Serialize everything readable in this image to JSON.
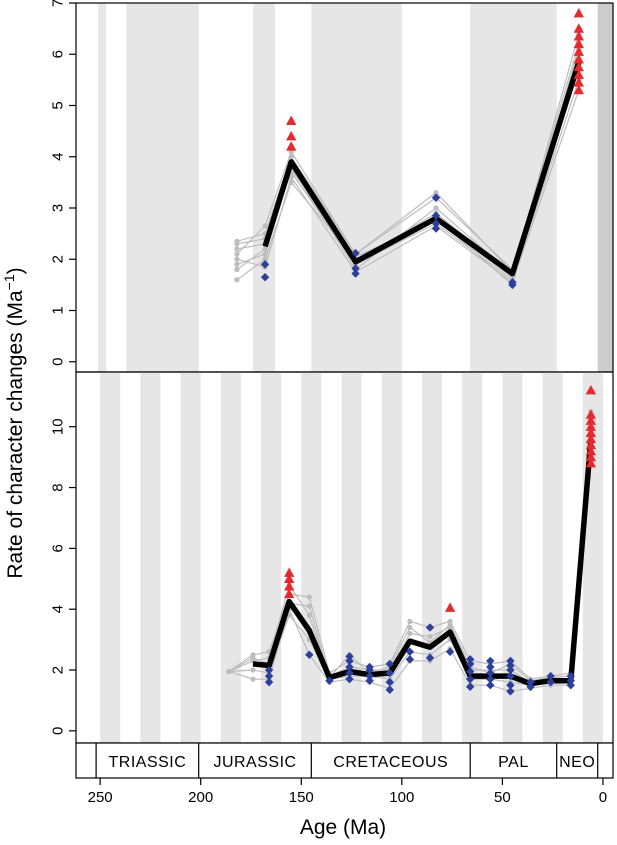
{
  "chart_data": {
    "type": "line",
    "xlabel": "Age (Ma)",
    "ylabel": "Rate of character changes (Ma",
    "ylabel_sup": "−1",
    "ylabel_close": ")",
    "x_reversed": true,
    "xlim": [
      262,
      -5
    ],
    "xticks": [
      250,
      200,
      150,
      100,
      50,
      0
    ],
    "xtick_labels": [
      "250",
      "200",
      "150",
      "100",
      "50",
      "0"
    ],
    "colors": {
      "mean": "#000000",
      "replicates": "#bdbdbd",
      "low_marker": "#2b3f9c",
      "high_marker": "#e8282b",
      "band": "#e6e6e6",
      "dark_band": "#cccccc"
    },
    "periods": [
      {
        "name": "TRIASSIC",
        "start": 252,
        "end": 201
      },
      {
        "name": "JURASSIC",
        "start": 201,
        "end": 145
      },
      {
        "name": "CRETACEOUS",
        "start": 145,
        "end": 66
      },
      {
        "name": "PAL",
        "start": 66,
        "end": 23
      },
      {
        "name": "NEO",
        "start": 23,
        "end": 2.6
      }
    ],
    "panels": [
      {
        "ylim": [
          -0.2,
          7.0
        ],
        "yticks": [
          0,
          1,
          2,
          3,
          4,
          5,
          6,
          7
        ],
        "ytick_labels": [
          "0",
          "1",
          "2",
          "3",
          "4",
          "5",
          "6",
          "7"
        ],
        "bands": [
          [
            251,
            247
          ],
          [
            237,
            201
          ],
          [
            174,
            163
          ],
          [
            145,
            100
          ],
          [
            66,
            23
          ]
        ],
        "dark_bands": [
          [
            2.6,
            -5
          ]
        ],
        "mean": {
          "x": [
            168,
            155,
            123,
            83,
            45,
            12
          ],
          "y": [
            2.25,
            3.9,
            1.95,
            2.8,
            1.72,
            5.85
          ]
        },
        "replicates": [
          {
            "x": [
              182,
              168,
              155,
              123,
              83,
              45,
              12
            ],
            "y": [
              2.35,
              2.5,
              4.0,
              2.1,
              3.2,
              1.8,
              6.2
            ]
          },
          {
            "x": [
              182,
              168,
              155,
              123,
              83,
              45,
              12
            ],
            "y": [
              2.2,
              2.3,
              3.7,
              1.9,
              2.7,
              1.6,
              5.5
            ]
          },
          {
            "x": [
              182,
              168,
              155,
              123,
              83,
              45,
              12
            ],
            "y": [
              1.9,
              2.1,
              3.8,
              1.8,
              3.0,
              1.7,
              5.9
            ]
          },
          {
            "x": [
              182,
              168,
              155,
              123,
              83,
              45,
              12
            ],
            "y": [
              1.6,
              2.0,
              3.5,
              2.0,
              2.8,
              1.5,
              6.0
            ]
          },
          {
            "x": [
              182,
              168,
              155,
              123,
              83,
              45,
              12
            ],
            "y": [
              2.1,
              2.65,
              4.1,
              2.1,
              3.3,
              1.75,
              6.4
            ]
          },
          {
            "x": [
              182,
              168,
              155,
              123,
              83,
              45,
              12
            ],
            "y": [
              2.0,
              1.85,
              3.6,
              1.75,
              2.65,
              1.55,
              5.3
            ]
          },
          {
            "x": [
              182,
              168,
              155,
              123,
              83,
              45,
              12
            ],
            "y": [
              2.3,
              2.4,
              3.9,
              1.95,
              2.9,
              1.7,
              5.7
            ]
          },
          {
            "x": [
              182,
              168,
              155,
              123,
              83,
              45,
              12
            ],
            "y": [
              1.8,
              2.2,
              3.75,
              2.05,
              2.75,
              1.65,
              6.1
            ]
          }
        ],
        "low_markers": [
          {
            "x": 168,
            "y": 1.65
          },
          {
            "x": 168,
            "y": 1.9
          },
          {
            "x": 123,
            "y": 1.72
          },
          {
            "x": 123,
            "y": 1.82
          },
          {
            "x": 123,
            "y": 2.12
          },
          {
            "x": 83,
            "y": 2.6
          },
          {
            "x": 83,
            "y": 2.7
          },
          {
            "x": 83,
            "y": 2.85
          },
          {
            "x": 83,
            "y": 3.2
          },
          {
            "x": 45,
            "y": 1.5
          },
          {
            "x": 45,
            "y": 1.55
          }
        ],
        "high_markers": [
          {
            "x": 155,
            "y": 4.2
          },
          {
            "x": 155,
            "y": 4.4
          },
          {
            "x": 155,
            "y": 4.7
          },
          {
            "x": 12,
            "y": 5.3
          },
          {
            "x": 12,
            "y": 5.45
          },
          {
            "x": 12,
            "y": 5.6
          },
          {
            "x": 12,
            "y": 5.75
          },
          {
            "x": 12,
            "y": 5.9
          },
          {
            "x": 12,
            "y": 6.05
          },
          {
            "x": 12,
            "y": 6.2
          },
          {
            "x": 12,
            "y": 6.35
          },
          {
            "x": 12,
            "y": 6.5
          },
          {
            "x": 12,
            "y": 6.8
          }
        ]
      },
      {
        "ylim": [
          -0.4,
          11.8
        ],
        "yticks": [
          0,
          2,
          4,
          6,
          8,
          10
        ],
        "ytick_labels": [
          "0",
          "2",
          "4",
          "6",
          "8",
          "10"
        ],
        "bands": [
          [
            250,
            240
          ],
          [
            230,
            220
          ],
          [
            210,
            200
          ],
          [
            190,
            180
          ],
          [
            170,
            160
          ],
          [
            150,
            140
          ],
          [
            130,
            120
          ],
          [
            110,
            100
          ],
          [
            90,
            80
          ],
          [
            70,
            60
          ],
          [
            50,
            40
          ],
          [
            30,
            20
          ],
          [
            10,
            0
          ]
        ],
        "dark_bands": [],
        "mean": {
          "x": [
            174,
            166,
            156,
            146,
            136,
            126,
            116,
            106,
            96,
            86,
            76,
            66,
            56,
            46,
            36,
            26,
            16,
            6
          ],
          "y": [
            2.2,
            2.15,
            4.25,
            3.3,
            1.75,
            1.95,
            1.85,
            1.9,
            2.95,
            2.75,
            3.25,
            1.8,
            1.8,
            1.8,
            1.55,
            1.65,
            1.65,
            9.6
          ]
        },
        "replicates": [
          {
            "x": [
              186,
              174,
              166,
              156,
              146,
              136,
              126,
              116,
              106,
              96,
              86,
              76,
              66,
              56,
              46,
              36,
              26,
              16,
              6
            ],
            "y": [
              1.95,
              2.5,
              2.6,
              4.5,
              4.4,
              1.9,
              2.3,
              2.1,
              2.2,
              3.6,
              3.4,
              3.6,
              2.3,
              2.2,
              2.3,
              1.7,
              1.8,
              1.9,
              10.5
            ]
          },
          {
            "x": [
              186,
              174,
              166,
              156,
              146,
              136,
              126,
              116,
              106,
              96,
              86,
              76,
              66,
              56,
              46,
              36,
              26,
              16,
              6
            ],
            "y": [
              1.95,
              1.7,
              1.7,
              4.0,
              2.5,
              1.6,
              1.7,
              1.6,
              1.4,
              2.3,
              2.3,
              2.7,
              1.5,
              1.5,
              1.3,
              1.4,
              1.5,
              1.5,
              8.8
            ]
          },
          {
            "x": [
              186,
              174,
              166,
              156,
              146,
              136,
              126,
              116,
              106,
              96,
              86,
              76,
              66,
              56,
              46,
              36,
              26,
              16,
              6
            ],
            "y": [
              1.95,
              2.3,
              2.4,
              4.8,
              3.8,
              1.8,
              2.1,
              2.0,
              2.0,
              3.2,
              3.1,
              3.4,
              2.0,
              2.0,
              2.0,
              1.6,
              1.7,
              1.7,
              9.9
            ]
          },
          {
            "x": [
              186,
              174,
              166,
              156,
              146,
              136,
              126,
              116,
              106,
              96,
              86,
              76,
              66,
              56,
              46,
              36,
              26,
              16,
              6
            ],
            "y": [
              1.95,
              2.0,
              1.9,
              3.8,
              3.0,
              1.7,
              1.8,
              1.8,
              1.7,
              2.6,
              2.5,
              3.0,
              1.7,
              1.7,
              1.6,
              1.5,
              1.6,
              1.6,
              9.2
            ]
          },
          {
            "x": [
              186,
              174,
              166,
              156,
              146,
              136,
              126,
              116,
              106,
              96,
              86,
              76,
              66,
              56,
              46,
              36,
              26,
              16,
              6
            ],
            "y": [
              1.95,
              2.4,
              2.2,
              4.2,
              4.1,
              1.75,
              2.5,
              1.9,
              2.1,
              3.4,
              2.9,
              3.5,
              2.1,
              1.9,
              2.2,
              1.65,
              1.75,
              1.8,
              10.2
            ]
          }
        ],
        "low_markers": [
          {
            "x": 166,
            "y": 1.6
          },
          {
            "x": 166,
            "y": 1.8
          },
          {
            "x": 166,
            "y": 2.0
          },
          {
            "x": 146,
            "y": 2.5
          },
          {
            "x": 136,
            "y": 1.65
          },
          {
            "x": 126,
            "y": 1.7
          },
          {
            "x": 126,
            "y": 1.9
          },
          {
            "x": 126,
            "y": 2.1
          },
          {
            "x": 126,
            "y": 2.3
          },
          {
            "x": 126,
            "y": 2.45
          },
          {
            "x": 116,
            "y": 1.65
          },
          {
            "x": 116,
            "y": 1.8
          },
          {
            "x": 116,
            "y": 2.0
          },
          {
            "x": 116,
            "y": 2.1
          },
          {
            "x": 106,
            "y": 1.35
          },
          {
            "x": 106,
            "y": 1.6
          },
          {
            "x": 106,
            "y": 1.9
          },
          {
            "x": 106,
            "y": 2.2
          },
          {
            "x": 96,
            "y": 2.35
          },
          {
            "x": 96,
            "y": 2.6
          },
          {
            "x": 86,
            "y": 2.4
          },
          {
            "x": 86,
            "y": 3.4
          },
          {
            "x": 76,
            "y": 2.6
          },
          {
            "x": 66,
            "y": 1.45
          },
          {
            "x": 66,
            "y": 1.7
          },
          {
            "x": 66,
            "y": 1.95
          },
          {
            "x": 66,
            "y": 2.2
          },
          {
            "x": 66,
            "y": 2.35
          },
          {
            "x": 56,
            "y": 1.5
          },
          {
            "x": 56,
            "y": 1.7
          },
          {
            "x": 56,
            "y": 1.9
          },
          {
            "x": 56,
            "y": 2.1
          },
          {
            "x": 56,
            "y": 2.3
          },
          {
            "x": 46,
            "y": 1.3
          },
          {
            "x": 46,
            "y": 1.5
          },
          {
            "x": 46,
            "y": 1.8
          },
          {
            "x": 46,
            "y": 2.0
          },
          {
            "x": 46,
            "y": 2.15
          },
          {
            "x": 46,
            "y": 2.3
          },
          {
            "x": 36,
            "y": 1.45
          },
          {
            "x": 36,
            "y": 1.6
          },
          {
            "x": 26,
            "y": 1.6
          },
          {
            "x": 26,
            "y": 1.8
          },
          {
            "x": 16,
            "y": 1.5
          },
          {
            "x": 16,
            "y": 1.65
          },
          {
            "x": 16,
            "y": 1.8
          }
        ],
        "high_markers": [
          {
            "x": 156,
            "y": 4.5
          },
          {
            "x": 156,
            "y": 4.75
          },
          {
            "x": 156,
            "y": 5.0
          },
          {
            "x": 156,
            "y": 5.2
          },
          {
            "x": 76,
            "y": 4.05
          },
          {
            "x": 6,
            "y": 8.8
          },
          {
            "x": 6,
            "y": 9.0
          },
          {
            "x": 6,
            "y": 9.2
          },
          {
            "x": 6,
            "y": 9.4
          },
          {
            "x": 6,
            "y": 9.6
          },
          {
            "x": 6,
            "y": 9.8
          },
          {
            "x": 6,
            "y": 10.0
          },
          {
            "x": 6,
            "y": 10.2
          },
          {
            "x": 6,
            "y": 10.4
          },
          {
            "x": 6,
            "y": 11.2
          }
        ]
      }
    ]
  }
}
